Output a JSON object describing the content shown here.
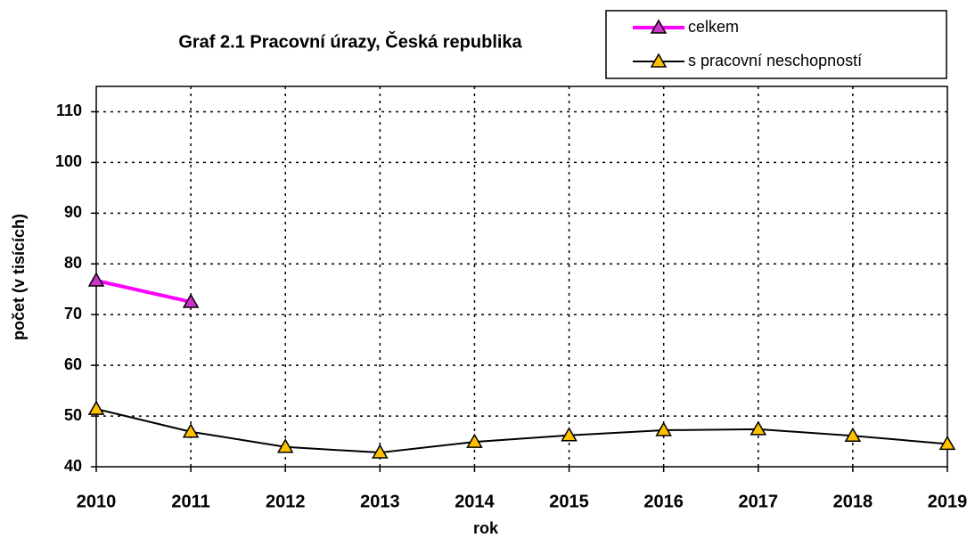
{
  "chart_data": {
    "type": "line",
    "title": "Graf 2.1  Pracovní úrazy, Česká republika",
    "x_label": "rok",
    "y_label": "počet (v tisících)",
    "x": [
      2010,
      2011,
      2012,
      2013,
      2014,
      2015,
      2016,
      2017,
      2018,
      2019
    ],
    "series": [
      {
        "name": "celkem",
        "color": "#ff00ff",
        "marker_color": "#cc33cc",
        "values": [
          76.7,
          72.5,
          null,
          null,
          null,
          null,
          null,
          null,
          null,
          null
        ]
      },
      {
        "name": "s pracovní neschopností",
        "color": "#000000",
        "marker_color": "#ffc000",
        "values": [
          51.4,
          46.9,
          43.9,
          42.8,
          44.9,
          46.2,
          47.2,
          47.4,
          46.1,
          44.5
        ]
      }
    ],
    "xlim": [
      2010,
      2019
    ],
    "xticks": [
      2010,
      2011,
      2012,
      2013,
      2014,
      2015,
      2016,
      2017,
      2018,
      2019
    ],
    "ylim": [
      40,
      115
    ],
    "yticks": [
      40,
      50,
      60,
      70,
      80,
      90,
      100,
      110
    ],
    "grid": true,
    "legend": "top-right"
  }
}
